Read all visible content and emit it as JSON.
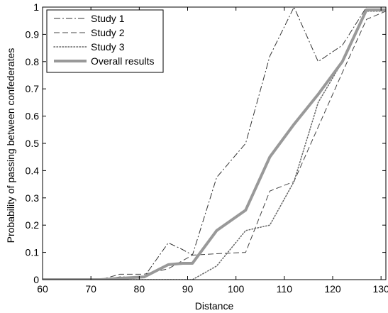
{
  "chart_data": {
    "type": "line",
    "title": "",
    "xlabel": "Distance",
    "ylabel": "Probability of passing between confederates",
    "xlim": [
      60,
      131
    ],
    "ylim": [
      0,
      1
    ],
    "x_ticks": [
      60,
      70,
      80,
      90,
      100,
      110,
      120,
      130
    ],
    "y_ticks": [
      0,
      0.1,
      0.2,
      0.3,
      0.4,
      0.5,
      0.6,
      0.7,
      0.8,
      0.9,
      1
    ],
    "x_tick_labels": [
      "60",
      "70",
      "80",
      "90",
      "100",
      "110",
      "120",
      "130"
    ],
    "y_tick_labels": [
      "0",
      "0.1",
      "0.2",
      "0.3",
      "0.4",
      "0.5",
      "0.6",
      "0.7",
      "0.8",
      "0.9",
      "1"
    ],
    "grid": false,
    "legend": {
      "placement": "top-left"
    },
    "series": [
      {
        "name": "Study 1",
        "style": "dashdot",
        "color": "#333333",
        "width": 1,
        "points": [
          [
            60,
            0
          ],
          [
            72,
            0
          ],
          [
            76,
            0.01
          ],
          [
            81,
            0.01
          ],
          [
            86,
            0.135
          ],
          [
            89,
            0.11
          ],
          [
            91,
            0.09
          ],
          [
            96,
            0.375
          ],
          [
            102,
            0.5
          ],
          [
            107,
            0.82
          ],
          [
            112,
            1.0
          ],
          [
            117,
            0.8
          ],
          [
            122,
            0.86
          ],
          [
            127,
            1.0
          ],
          [
            131,
            1.0
          ]
        ]
      },
      {
        "name": "Study 2",
        "style": "dash",
        "color": "#444444",
        "width": 1,
        "points": [
          [
            60,
            0
          ],
          [
            72,
            0
          ],
          [
            76,
            0.02
          ],
          [
            81,
            0.02
          ],
          [
            86,
            0.04
          ],
          [
            91,
            0.09
          ],
          [
            96,
            0.095
          ],
          [
            102,
            0.1
          ],
          [
            107,
            0.325
          ],
          [
            112,
            0.36
          ],
          [
            117,
            0.56
          ],
          [
            122,
            0.76
          ],
          [
            127,
            0.955
          ],
          [
            131,
            0.985
          ]
        ]
      },
      {
        "name": "Study 3",
        "style": "dot",
        "color": "#666666",
        "width": 1.5,
        "points": [
          [
            60,
            0
          ],
          [
            80,
            0
          ],
          [
            91,
            0.0
          ],
          [
            96,
            0.05
          ],
          [
            102,
            0.18
          ],
          [
            107,
            0.2
          ],
          [
            112,
            0.36
          ],
          [
            117,
            0.65
          ],
          [
            122,
            0.8
          ],
          [
            127,
            0.985
          ],
          [
            131,
            0.985
          ]
        ]
      },
      {
        "name": "Overall results",
        "style": "solid",
        "color": "#999999",
        "width": 4,
        "points": [
          [
            60,
            0
          ],
          [
            72,
            0
          ],
          [
            76,
            0.005
          ],
          [
            81,
            0.01
          ],
          [
            86,
            0.055
          ],
          [
            89,
            0.06
          ],
          [
            91,
            0.06
          ],
          [
            96,
            0.18
          ],
          [
            102,
            0.255
          ],
          [
            107,
            0.45
          ],
          [
            112,
            0.57
          ],
          [
            117,
            0.68
          ],
          [
            122,
            0.8
          ],
          [
            127,
            0.99
          ],
          [
            131,
            0.99
          ]
        ]
      }
    ]
  }
}
